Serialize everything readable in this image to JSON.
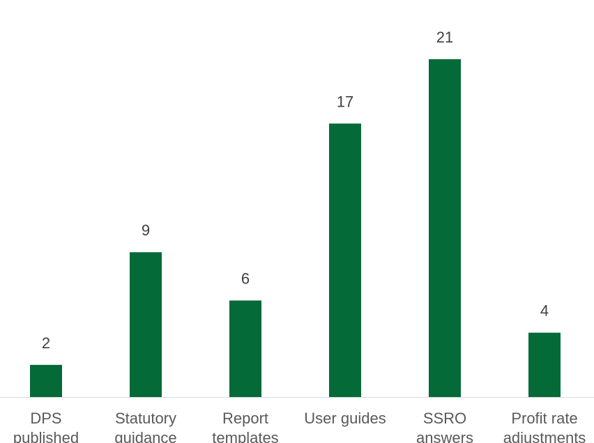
{
  "chart_data": {
    "type": "bar",
    "categories": [
      "DPS published",
      "Statutory guidance",
      "Report templates",
      "User guides",
      "SSRO answers",
      "Profit rate adjustments"
    ],
    "values": [
      2,
      9,
      6,
      17,
      21,
      4
    ],
    "color": "#046a38"
  }
}
